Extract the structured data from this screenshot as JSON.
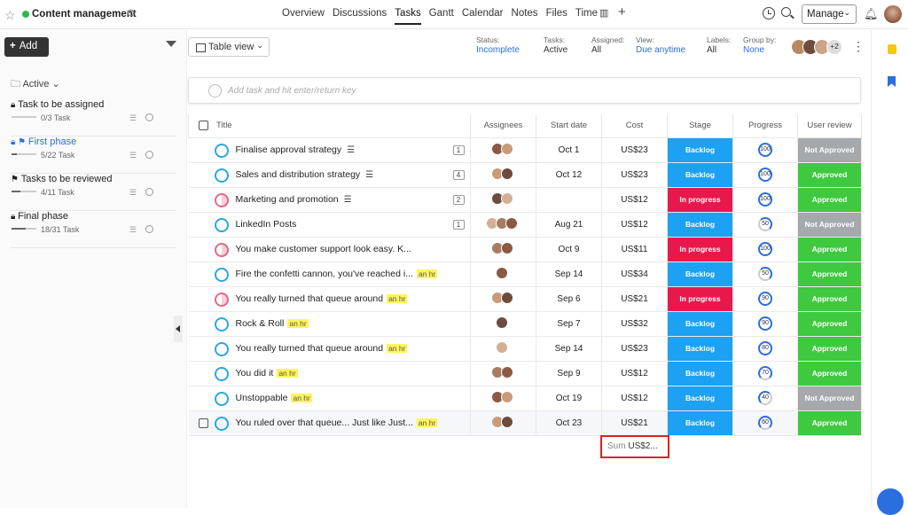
{
  "header": {
    "project_title": "Content management",
    "project_dot_color": "#2db84d",
    "tabs": [
      "Overview",
      "Discussions",
      "Tasks",
      "Gantt",
      "Calendar",
      "Notes",
      "Files",
      "Time"
    ],
    "active_tab": "Tasks",
    "manage_label": "Manage"
  },
  "sidebar": {
    "add_label": "Add",
    "filter_label": "Active",
    "phases": [
      {
        "name": "Task to be assigned",
        "count": "0/3 Task",
        "progress": 0.0,
        "icon": "lock-icon",
        "active": false
      },
      {
        "name": "First phase",
        "count": "5/22 Task",
        "progress": 0.23,
        "icon": "flag-icon",
        "active": true
      },
      {
        "name": "Tasks to be reviewed",
        "count": "4/11 Task",
        "progress": 0.36,
        "icon": "flag-icon",
        "active": false
      },
      {
        "name": "Final phase",
        "count": "18/31 Task",
        "progress": 0.58,
        "icon": "lock-icon",
        "active": false
      }
    ]
  },
  "toolbar": {
    "view_label": "Table view",
    "filters": [
      {
        "label": "Status:",
        "value": "Incomplete",
        "blue": true
      },
      {
        "label": "Tasks:",
        "value": "Active",
        "blue": false
      },
      {
        "label": "Assigned:",
        "value": "All",
        "blue": false
      },
      {
        "label": "View:",
        "value": "Due anytime",
        "blue": true
      },
      {
        "label": "Labels:",
        "value": "All",
        "blue": false
      },
      {
        "label": "Group by:",
        "value": "None",
        "blue": true
      }
    ],
    "extra_members": "+2"
  },
  "add_task_placeholder": "Add task and hit enter/return key",
  "columns": [
    "Title",
    "Assignees",
    "Start date",
    "Cost",
    "Stage",
    "Progress",
    "User review"
  ],
  "rows": [
    {
      "title": "Finalise approval strategy",
      "list": true,
      "num": "1",
      "hr": false,
      "status": "open",
      "assignees": 2,
      "start": "Oct 1",
      "cost": "US$23",
      "stage": "Backlog",
      "progress": "100",
      "review": "Not Approved"
    },
    {
      "title": "Sales and distribution strategy",
      "list": true,
      "num": "4",
      "hr": false,
      "status": "open",
      "assignees": 2,
      "start": "Oct 12",
      "cost": "US$23",
      "stage": "Backlog",
      "progress": "100",
      "review": "Approved"
    },
    {
      "title": "Marketing and promotion",
      "list": true,
      "num": "2",
      "hr": false,
      "status": "red",
      "assignees": 2,
      "start": "",
      "cost": "US$12",
      "stage": "In progress",
      "progress": "100",
      "review": "Approved"
    },
    {
      "title": "LinkedIn Posts",
      "list": false,
      "num": "1",
      "hr": false,
      "status": "open",
      "assignees": 3,
      "start": "Aug 21",
      "cost": "US$12",
      "stage": "Backlog",
      "progress": "50",
      "review": "Not Approved"
    },
    {
      "title": "You make customer support look easy. K...",
      "list": false,
      "num": "",
      "hr": false,
      "status": "red",
      "assignees": 2,
      "start": "Oct 9",
      "cost": "US$11",
      "stage": "In progress",
      "progress": "100",
      "review": "Approved"
    },
    {
      "title": "Fire the confetti cannon, you've reached i...",
      "list": false,
      "num": "",
      "hr": true,
      "status": "open",
      "assignees": 1,
      "start": "Sep 14",
      "cost": "US$34",
      "stage": "Backlog",
      "progress": "50",
      "review": "Approved"
    },
    {
      "title": "You really turned that queue around",
      "list": false,
      "num": "",
      "hr": true,
      "status": "red",
      "assignees": 2,
      "start": "Sep 6",
      "cost": "US$21",
      "stage": "In progress",
      "progress": "90",
      "review": "Approved"
    },
    {
      "title": "Rock & Roll",
      "list": false,
      "num": "",
      "hr": true,
      "status": "open",
      "assignees": 1,
      "start": "Sep 7",
      "cost": "US$32",
      "stage": "Backlog",
      "progress": "90",
      "review": "Approved"
    },
    {
      "title": "You really turned that queue around",
      "list": false,
      "num": "",
      "hr": true,
      "status": "open",
      "assignees": 1,
      "start": "Sep 14",
      "cost": "US$23",
      "stage": "Backlog",
      "progress": "80",
      "review": "Approved"
    },
    {
      "title": "You did it",
      "list": false,
      "num": "",
      "hr": true,
      "status": "open",
      "assignees": 2,
      "start": "Sep 9",
      "cost": "US$12",
      "stage": "Backlog",
      "progress": "70",
      "review": "Approved"
    },
    {
      "title": "Unstoppable",
      "list": false,
      "num": "",
      "hr": true,
      "status": "open",
      "assignees": 2,
      "start": "Oct 19",
      "cost": "US$12",
      "stage": "Backlog",
      "progress": "40",
      "review": "Not Approved"
    },
    {
      "title": "You ruled over that queue... Just like Just...",
      "list": false,
      "num": "",
      "hr": true,
      "status": "open",
      "assignees": 2,
      "start": "Oct 23",
      "cost": "US$21",
      "stage": "Backlog",
      "progress": "60",
      "review": "Approved",
      "highlight": true
    }
  ],
  "hr_badge": "an hr",
  "sum": {
    "label": "Sum",
    "value": "US$2..."
  },
  "colors": {
    "backlog": "#1da1f2",
    "in_progress": "#e8184d",
    "approved": "#3ec93e",
    "not_approved": "#a4a9ae",
    "accent": "#2b6ee0"
  }
}
